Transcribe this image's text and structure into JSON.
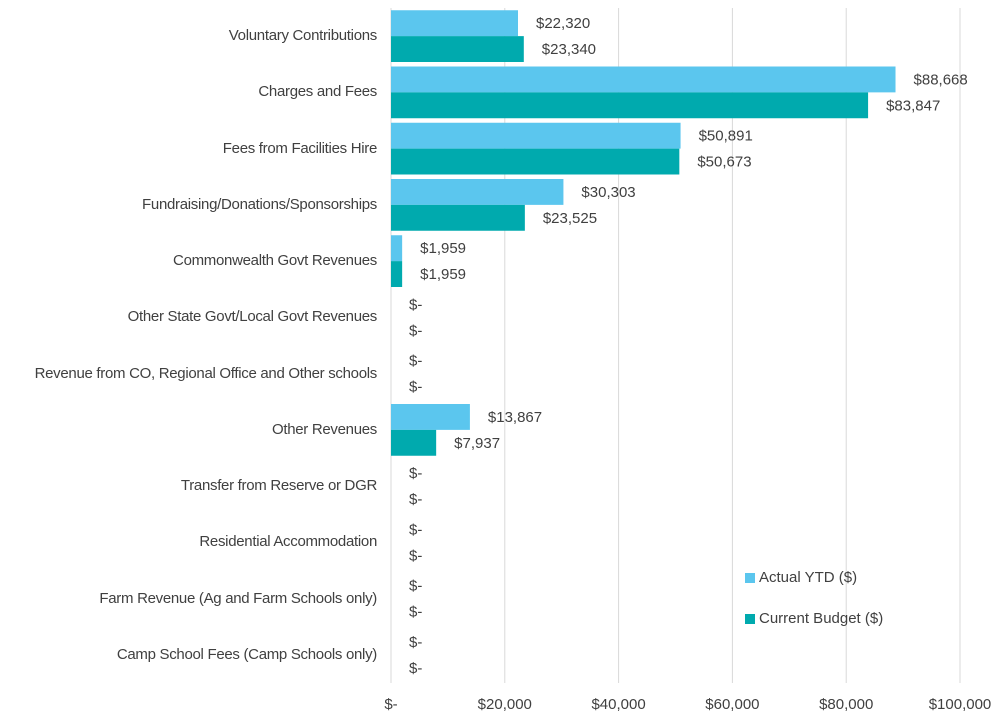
{
  "chart_data": {
    "type": "hbar",
    "categories": [
      "Voluntary Contributions",
      "Charges and Fees",
      "Fees from Facilities Hire",
      "Fundraising/Donations/Sponsorships",
      "Commonwealth Govt Revenues",
      "Other State Govt/Local Govt Revenues",
      "Revenue from CO, Regional Office and Other schools",
      "Other Revenues",
      "Transfer from Reserve or DGR",
      "Residential Accommodation",
      "Farm Revenue (Ag and Farm Schools only)",
      "Camp School Fees (Camp Schools only)"
    ],
    "series": [
      {
        "name": "Actual YTD ($)",
        "color": "#5bc6ee",
        "values": [
          22320,
          88668,
          50891,
          30303,
          1959,
          0,
          0,
          13867,
          0,
          0,
          0,
          0
        ],
        "value_labels": [
          "$22,320",
          "$88,668",
          "$50,891",
          "$30,303",
          "$1,959",
          "$-",
          "$-",
          "$13,867",
          "$-",
          "$-",
          "$-",
          "$-"
        ]
      },
      {
        "name": "Current Budget ($)",
        "color": "#00aaae",
        "values": [
          23340,
          83847,
          50673,
          23525,
          1959,
          0,
          0,
          7937,
          0,
          0,
          0,
          0
        ],
        "value_labels": [
          "$23,340",
          "$83,847",
          "$50,673",
          "$23,525",
          "$1,959",
          "$-",
          "$-",
          "$7,937",
          "$-",
          "$-",
          "$-",
          "$-"
        ]
      }
    ],
    "xlim": [
      0,
      100000
    ],
    "xticks": [
      {
        "value": 0,
        "label": "$-"
      },
      {
        "value": 20000,
        "label": "$20,000"
      },
      {
        "value": 40000,
        "label": "$40,000"
      },
      {
        "value": 60000,
        "label": "$60,000"
      },
      {
        "value": 80000,
        "label": "$80,000"
      },
      {
        "value": 100000,
        "label": "$100,000"
      }
    ],
    "grid": true,
    "legend": "lower right"
  }
}
